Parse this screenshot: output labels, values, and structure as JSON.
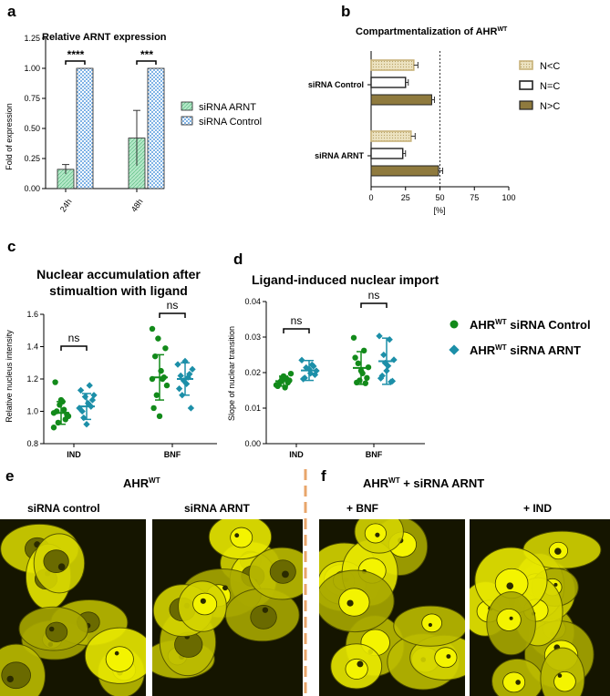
{
  "colors": {
    "green_bar": "#b5e8c8",
    "green_dot": "#128a1a",
    "blue_dot": "#1c8fa8",
    "blue_check": "#7fb3e6",
    "tan": "#c8b27a",
    "olive": "#8f7a3e",
    "orange_divider": "#e8a66b",
    "cell_yellow": "#f2f200",
    "cell_dark": "#151500"
  },
  "panel_a": {
    "letter": "a",
    "chart_data": {
      "type": "bar",
      "title": "Relative ARNT expression",
      "ylabel": "Fold of expression",
      "categories": [
        "24h",
        "48h"
      ],
      "ylim": [
        0,
        1.25
      ],
      "yticks": [
        "0.00",
        "0.25",
        "0.50",
        "0.75",
        "1.00",
        "1.25"
      ],
      "series": [
        {
          "name": "siRNA ARNT",
          "values": [
            0.16,
            0.42
          ],
          "error": [
            0.04,
            0.23
          ]
        },
        {
          "name": "siRNA Control",
          "values": [
            1.0,
            1.0
          ]
        }
      ],
      "significance": [
        "****",
        "***"
      ]
    }
  },
  "panel_b": {
    "letter": "b",
    "chart_data": {
      "type": "bar",
      "orientation": "horizontal",
      "title_main": "Compartmentalization of AHR",
      "title_sup": "WT",
      "xlabel": "[%]",
      "xlim": [
        0,
        100
      ],
      "xticks": [
        "0",
        "25",
        "50",
        "75",
        "100"
      ],
      "reference_line": 50,
      "categories": [
        "siRNA Control",
        "siRNA ARNT"
      ],
      "series": [
        {
          "name": "N<C",
          "values": [
            31,
            29
          ],
          "error": [
            3,
            3
          ]
        },
        {
          "name": "N=C",
          "values": [
            25,
            23
          ],
          "error": [
            2,
            2
          ]
        },
        {
          "name": "N>C",
          "values": [
            44,
            49
          ],
          "error": [
            2,
            3
          ]
        }
      ]
    }
  },
  "panel_c": {
    "letter": "c",
    "chart_data": {
      "type": "scatter",
      "title_line1": "Nuclear accumulation after",
      "title_line2": "stimualtion with ligand",
      "ylabel": "Relative nucleus intensity",
      "categories": [
        "IND",
        "BNF"
      ],
      "ylim": [
        0.8,
        1.6
      ],
      "yticks": [
        "0.8",
        "1.0",
        "1.2",
        "1.4",
        "1.6"
      ],
      "series": [
        {
          "name": "AHR WT siRNA Control",
          "points": [
            [
              0.9,
              1.01,
              0.93,
              0.97,
              1.06,
              1.0,
              0.98,
              1.07,
              1.18,
              0.95,
              1.04,
              0.99
            ],
            [
              1.51,
              1.2,
              1.1,
              1.16,
              1.25,
              1.34,
              1.39,
              0.97,
              1.02,
              1.21,
              1.45,
              1.2
            ]
          ],
          "mean": [
            0.99,
            1.21
          ],
          "sd": [
            0.07,
            0.14
          ]
        },
        {
          "name": "AHR WT siRNA ARNT",
          "points": [
            [
              1.02,
              1.16,
              0.96,
              1.1,
              1.05,
              1.0,
              1.07,
              0.92,
              1.13,
              1.03,
              1.09
            ],
            [
              1.29,
              1.21,
              1.1,
              1.26,
              1.17,
              1.22,
              1.02,
              1.31,
              1.14,
              1.23,
              1.19
            ]
          ],
          "mean": [
            1.03,
            1.2
          ],
          "sd": [
            0.08,
            0.1
          ]
        }
      ],
      "significance": [
        "ns",
        "ns"
      ]
    }
  },
  "panel_d": {
    "letter": "d",
    "chart_data": {
      "type": "scatter",
      "title": "Ligand-induced nuclear import",
      "ylabel": "Slope of nuclear transition",
      "categories": [
        "IND",
        "BNF"
      ],
      "ylim": [
        0,
        0.04
      ],
      "yticks": [
        "0.00",
        "0.01",
        "0.02",
        "0.03",
        "0.04"
      ],
      "series": [
        {
          "name": "AHR WT siRNA Control",
          "points": [
            [
              0.0165,
              0.0183,
              0.0175,
              0.0197,
              0.0158,
              0.0168,
              0.0178,
              0.019,
              0.0162,
              0.0172,
              0.0185
            ],
            [
              0.0298,
              0.0262,
              0.0226,
              0.0215,
              0.0198,
              0.0172,
              0.0185,
              0.0205,
              0.0242,
              0.017,
              0.0178
            ]
          ],
          "mean": [
            0.0176,
            0.0213
          ],
          "sd": [
            0.0014,
            0.0046
          ]
        },
        {
          "name": "AHR WT siRNA ARNT",
          "points": [
            [
              0.0235,
              0.0222,
              0.0214,
              0.0205,
              0.0198,
              0.0185,
              0.0194,
              0.021,
              0.0182,
              0.0218
            ],
            [
              0.0303,
              0.0293,
              0.025,
              0.0236,
              0.0219,
              0.0191,
              0.0176,
              0.0205,
              0.0184,
              0.0174,
              0.0227
            ]
          ],
          "mean": [
            0.0206,
            0.0232
          ],
          "sd": [
            0.0028,
            0.0065
          ]
        }
      ],
      "significance": [
        "ns",
        "ns"
      ]
    }
  },
  "legend_cd": [
    {
      "main": "AHR",
      "sup": "WT",
      "rest": " siRNA Control"
    },
    {
      "main": "AHR",
      "sup": "WT",
      "rest": " siRNA ARNT"
    }
  ],
  "panel_e": {
    "letter": "e",
    "heading_main": "AHR",
    "heading_sup": "WT",
    "images": [
      "siRNA control",
      "siRNA ARNT"
    ]
  },
  "panel_f": {
    "letter": "f",
    "heading_main": "AHR",
    "heading_sup": "WT",
    "heading_rest": " + siRNA ARNT",
    "images": [
      "+ BNF",
      "+ IND"
    ]
  }
}
